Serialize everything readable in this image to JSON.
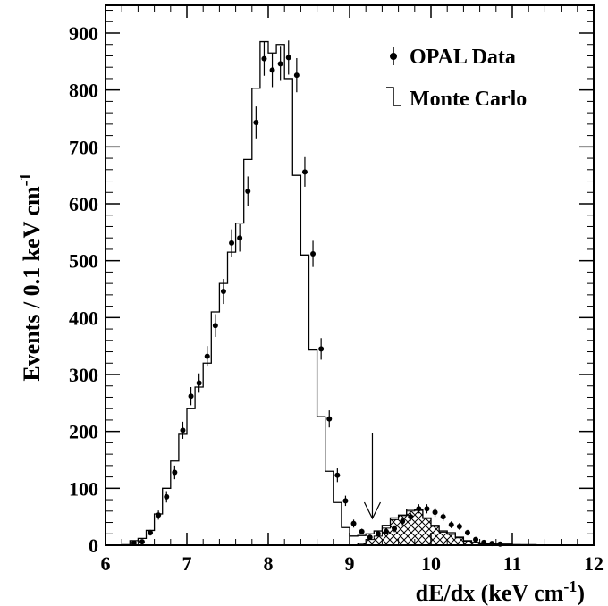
{
  "chart_data": {
    "type": "histogram",
    "xlabel": "dE/dx (keV cm",
    "xlabel_sup": "-1",
    "xlabel_close": ")",
    "ylabel": "Events / 0.1 keV cm",
    "ylabel_sup": "-1",
    "xlim": [
      6,
      12
    ],
    "ylim": [
      0,
      950
    ],
    "x_ticks": [
      6,
      7,
      8,
      9,
      10,
      11,
      12
    ],
    "y_ticks": [
      0,
      100,
      200,
      300,
      400,
      500,
      600,
      700,
      800,
      900
    ],
    "legend": {
      "placement": "top-right",
      "entries": [
        {
          "label": "OPAL Data",
          "style": "marker"
        },
        {
          "label": "Monte Carlo",
          "style": "histogram"
        }
      ]
    },
    "cut_arrow_x": 9.28,
    "monte_carlo": {
      "name": "Monte Carlo",
      "bin_edges": [
        6.2,
        6.3,
        6.4,
        6.5,
        6.6,
        6.7,
        6.8,
        6.9,
        7.0,
        7.1,
        7.2,
        7.3,
        7.4,
        7.5,
        7.6,
        7.7,
        7.8,
        7.9,
        8.0,
        8.1,
        8.2,
        8.3,
        8.4,
        8.5,
        8.6,
        8.7,
        8.8,
        8.9,
        9.0,
        9.1,
        9.2,
        9.3,
        9.4,
        9.5,
        9.6,
        9.7,
        9.8,
        9.9,
        10.0,
        10.1,
        10.2,
        10.3,
        10.4,
        10.5,
        10.6,
        10.7,
        10.8,
        10.9,
        11.0,
        11.1,
        11.2,
        11.3
      ],
      "values": [
        1,
        8,
        12,
        26,
        55,
        100,
        148,
        195,
        240,
        278,
        320,
        410,
        460,
        515,
        566,
        678,
        803,
        885,
        865,
        880,
        820,
        650,
        510,
        343,
        226,
        130,
        75,
        31,
        16,
        17,
        20,
        25,
        35,
        48,
        53,
        63,
        62,
        48,
        35,
        25,
        22,
        14,
        8,
        5,
        3,
        3,
        2,
        2,
        1,
        1,
        1
      ]
    },
    "monte_carlo_hatched": {
      "bin_edges": [
        9.1,
        9.2,
        9.3,
        9.4,
        9.5,
        9.6,
        9.7,
        9.8,
        9.9,
        10.0,
        10.1,
        10.2,
        10.3,
        10.4,
        10.5,
        10.6,
        10.7,
        10.8,
        10.9,
        11.0,
        11.1
      ],
      "values": [
        3,
        10,
        16,
        30,
        45,
        52,
        60,
        61,
        47,
        33,
        23,
        19,
        13,
        7,
        4,
        2,
        2,
        1,
        1,
        1
      ]
    },
    "opal_data": {
      "name": "OPAL Data",
      "x": [
        6.35,
        6.45,
        6.55,
        6.65,
        6.75,
        6.85,
        6.95,
        7.05,
        7.15,
        7.25,
        7.35,
        7.45,
        7.55,
        7.65,
        7.75,
        7.85,
        7.95,
        8.05,
        8.15,
        8.25,
        8.35,
        8.45,
        8.55,
        8.65,
        8.75,
        8.85,
        8.95,
        9.05,
        9.15,
        9.25,
        9.35,
        9.45,
        9.55,
        9.65,
        9.75,
        9.85,
        9.95,
        10.05,
        10.15,
        10.25,
        10.35,
        10.45,
        10.55,
        10.65,
        10.75,
        10.85
      ],
      "y": [
        4,
        6,
        22,
        53,
        85,
        128,
        202,
        262,
        285,
        332,
        386,
        446,
        531,
        540,
        622,
        743,
        855,
        835,
        846,
        857,
        826,
        656,
        512,
        345,
        222,
        123,
        78,
        38,
        24,
        14,
        20,
        24,
        29,
        42,
        50,
        64,
        64,
        58,
        50,
        36,
        33,
        22,
        10,
        5,
        3,
        2
      ],
      "yerr": [
        3,
        3,
        5,
        8,
        10,
        12,
        15,
        16,
        17,
        18,
        20,
        22,
        24,
        24,
        26,
        28,
        30,
        30,
        30,
        30,
        30,
        26,
        23,
        19,
        15,
        12,
        9,
        7,
        5,
        4,
        5,
        5,
        6,
        7,
        7,
        8,
        8,
        8,
        7,
        6,
        6,
        5,
        3,
        2,
        2,
        2
      ]
    }
  }
}
